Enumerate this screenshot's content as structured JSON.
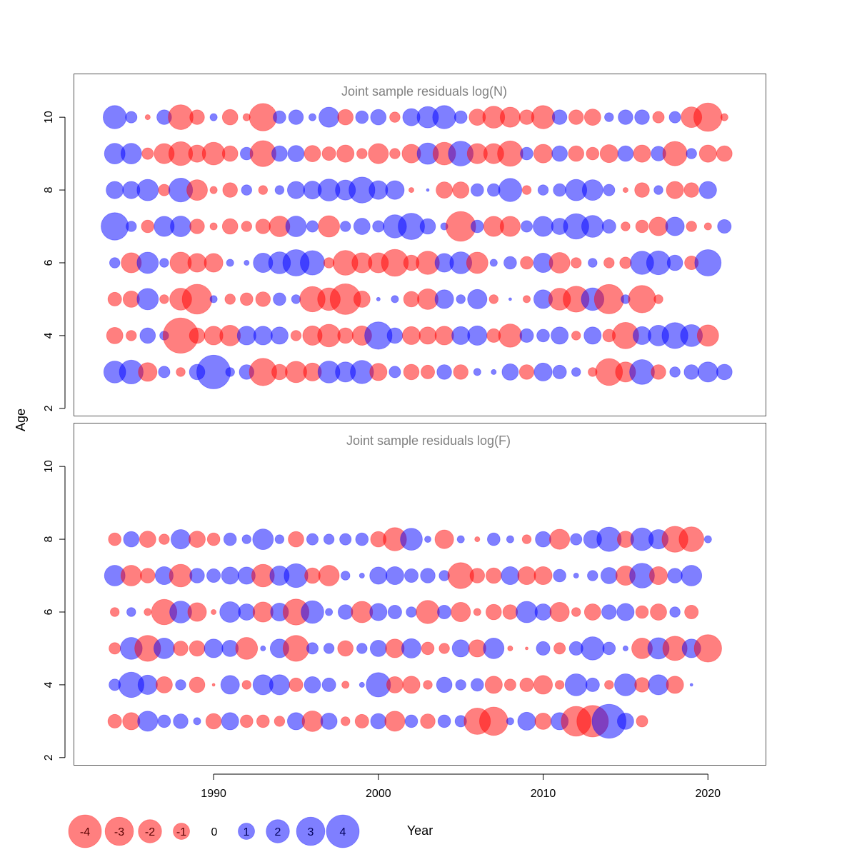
{
  "chart_data": {
    "type": "scatter",
    "xlabel": "Year",
    "ylabel": "Age",
    "xlim": [
      1981.5,
      2023.5
    ],
    "ylim": [
      1.8,
      11.2
    ],
    "x_ticks": [
      "1990",
      "2000",
      "2010",
      "2020"
    ],
    "y_ticks": [
      "2",
      "4",
      "6",
      "8",
      "10"
    ],
    "start_year": 1984,
    "colors": {
      "positive": "#0000ff",
      "negative": "#ff0000",
      "frame": "#555555"
    },
    "panels": [
      {
        "title": "Joint sample residuals log(N)",
        "ages": [
          10,
          9,
          8,
          7,
          6,
          5,
          4,
          3
        ],
        "residuals": [
          [
            2,
            0.5,
            -0.1,
            0.8,
            -2.3,
            -0.8,
            0.2,
            -0.9,
            -0.2,
            -2.8,
            0.6,
            0.8,
            0.2,
            1.5,
            -0.9,
            0.6,
            0.9,
            -0.4,
            1.1,
            1.7,
            2.0,
            0.6,
            -1.0,
            -1.8,
            -1.5,
            -0.8,
            -2.0,
            0.8,
            -0.8,
            -1.0,
            0.3,
            0.8,
            0.8,
            -0.5,
            0.5,
            -1.6,
            -3.0,
            -0.2
          ],
          [
            1.6,
            1.6,
            -0.5,
            -1.5,
            -2.1,
            -1.1,
            -1.9,
            -0.9,
            0.6,
            -2.5,
            0.9,
            1.0,
            -1.0,
            -0.7,
            -1.1,
            -0.4,
            -1.5,
            -0.4,
            -1.3,
            1.7,
            -1.9,
            2.3,
            -1.5,
            -1.5,
            -2.4,
            0.6,
            -1.3,
            0.9,
            -0.9,
            -0.6,
            -1.2,
            0.9,
            -1.1,
            0.8,
            -2.2,
            0.4,
            -1.1,
            -0.9
          ],
          [
            1.1,
            1.1,
            1.7,
            -0.5,
            2.1,
            -1.6,
            -0.2,
            -0.8,
            0.4,
            -0.3,
            0.3,
            1.1,
            1.2,
            1.8,
            1.5,
            2.5,
            1.3,
            1.3,
            -0.1,
            0.03,
            -1.0,
            -1.0,
            0.6,
            0.6,
            2.0,
            -0.3,
            0.4,
            0.6,
            1.7,
            1.6,
            0.5,
            -0.1,
            -0.8,
            0.3,
            -1.1,
            -0.8,
            1.1
          ],
          [
            2.8,
            0.4,
            -0.6,
            1.5,
            1.6,
            -0.8,
            -0.2,
            -0.9,
            -0.4,
            -0.8,
            -1.6,
            1.6,
            0.5,
            -1.7,
            0.4,
            1.0,
            0.5,
            2.0,
            2.6,
            0.9,
            0.2,
            -3.3,
            0.6,
            -1.5,
            -1.5,
            0.5,
            1.5,
            1.0,
            2.4,
            1.8,
            0.7,
            -0.3,
            -0.6,
            -1.3,
            1.3,
            -0.4,
            -0.2,
            0.7
          ],
          [
            0.4,
            -1.5,
            1.7,
            0.3,
            -1.7,
            -1.3,
            -1.3,
            0.2,
            0.1,
            1.4,
            1.8,
            2.6,
            2.2,
            -0.4,
            -2.3,
            -1.5,
            -1.5,
            -2.7,
            -0.9,
            -2.0,
            1.3,
            1.8,
            -1.7,
            0.2,
            0.6,
            -0.6,
            1.4,
            -1.6,
            -0.4,
            0.3,
            -0.4,
            -0.5,
            2.0,
            2.1,
            0.9,
            -0.7,
            2.6
          ],
          [
            -0.7,
            -1.0,
            1.7,
            -0.3,
            -1.8,
            -3.3,
            0.2,
            -0.4,
            -0.6,
            -0.8,
            0.6,
            0.3,
            -2.4,
            -1.9,
            -3.5,
            -1.0,
            0.05,
            0.2,
            -0.9,
            -1.6,
            1.3,
            0.3,
            1.4,
            -0.3,
            0.03,
            -0.2,
            1.3,
            -1.8,
            -2.5,
            1.9,
            -3.2,
            0.3,
            -2.8,
            -0.3
          ],
          [
            -1.0,
            -0.4,
            0.9,
            0.3,
            -4.6,
            -0.9,
            -1.3,
            -1.6,
            1.3,
            1.3,
            1.1,
            -0.4,
            -1.4,
            -1.9,
            -0.9,
            -1.4,
            2.8,
            0.9,
            -1.2,
            -1.1,
            -1.3,
            1.2,
            1.4,
            -0.7,
            -2.0,
            0.7,
            0.6,
            1.1,
            -0.3,
            1.1,
            -0.6,
            -2.6,
            1.2,
            1.6,
            2.5,
            1.8,
            -1.7
          ],
          [
            1.8,
            2.1,
            -1.3,
            0.5,
            -0.3,
            0.9,
            4.2,
            0.3,
            0.8,
            -2.8,
            -0.9,
            -1.7,
            -1.2,
            1.8,
            1.5,
            2.0,
            -1.1,
            0.5,
            -0.9,
            -0.7,
            0.8,
            -0.8,
            0.2,
            0.1,
            1.0,
            -0.8,
            1.2,
            0.7,
            0.3,
            -0.3,
            -2.7,
            -1.5,
            2.3,
            -0.8,
            0.4,
            0.8,
            1.5,
            0.9
          ]
        ]
      },
      {
        "title": "Joint sample residuals log(F)",
        "ages": [
          8,
          7,
          6,
          5,
          4,
          3
        ],
        "residuals": [
          [
            -0.6,
            0.9,
            -1.0,
            -0.4,
            1.4,
            -1.0,
            -0.6,
            0.6,
            0.3,
            1.6,
            0.3,
            -0.9,
            0.5,
            0.4,
            0.5,
            0.6,
            -0.9,
            -2.0,
            1.8,
            0.15,
            -1.3,
            0.2,
            -0.1,
            0.6,
            0.2,
            -0.3,
            0.9,
            -1.5,
            0.5,
            1.2,
            2.2,
            -1.0,
            1.9,
            1.4,
            -2.5,
            -2.3,
            0.2
          ],
          [
            1.6,
            -1.6,
            -0.8,
            1.2,
            -1.9,
            0.8,
            0.7,
            1.1,
            1.1,
            -1.9,
            1.4,
            2.1,
            -0.9,
            -1.6,
            0.3,
            0.1,
            1.1,
            1.2,
            0.7,
            0.8,
            0.4,
            -2.5,
            -0.8,
            -0.9,
            1.2,
            -1.2,
            -1.2,
            0.6,
            0.1,
            0.4,
            1.0,
            -1.4,
            2.3,
            -1.2,
            0.8,
            1.6
          ],
          [
            -0.3,
            0.3,
            -0.2,
            -2.4,
            1.8,
            -1.3,
            -0.1,
            1.6,
            1.0,
            -1.5,
            1.2,
            -2.5,
            1.9,
            0.2,
            0.8,
            -1.7,
            1.1,
            0.7,
            0.4,
            -2.0,
            0.7,
            -1.4,
            -0.2,
            -0.9,
            -0.8,
            1.7,
            1.0,
            -1.4,
            -0.3,
            -1.0,
            0.8,
            1.1,
            -0.6,
            -1.0,
            0.4,
            -0.7
          ],
          [
            -0.5,
            1.8,
            -2.5,
            1.6,
            -0.8,
            -0.9,
            1.3,
            1.0,
            -1.8,
            0.1,
            1.3,
            -2.5,
            0.5,
            0.4,
            -0.9,
            0.4,
            1.0,
            -1.3,
            1.4,
            -0.6,
            -0.4,
            1.1,
            -1.1,
            1.6,
            -0.1,
            -0.03,
            0.7,
            -0.5,
            0.7,
            2.0,
            0.6,
            0.1,
            -1.6,
            1.7,
            -2.2,
            1.3,
            -2.8
          ],
          [
            0.5,
            2.4,
            1.4,
            -1.0,
            0.4,
            -0.9,
            -0.03,
            1.3,
            -0.3,
            1.5,
            1.5,
            -0.7,
            1.0,
            0.7,
            -0.2,
            0.1,
            2.2,
            -1.0,
            -1.1,
            -0.3,
            0.9,
            0.4,
            0.6,
            -1.1,
            -0.5,
            -0.7,
            -1.3,
            -0.3,
            1.8,
            0.7,
            -0.3,
            1.8,
            -0.8,
            1.5,
            -1.1,
            0.03
          ],
          [
            -0.7,
            -1.1,
            1.5,
            0.6,
            0.8,
            0.2,
            -0.9,
            1.1,
            -0.6,
            -0.6,
            -0.4,
            1.1,
            -1.6,
            1.0,
            -0.3,
            -0.7,
            0.9,
            -1.5,
            0.6,
            -0.8,
            0.6,
            0.5,
            -2.6,
            -3.0,
            0.2,
            1.2,
            -1.0,
            1.1,
            -3.3,
            -3.7,
            4.3,
            1.0,
            -0.5
          ]
        ]
      }
    ],
    "legend": {
      "values": [
        -4,
        -3,
        -2,
        -1,
        0,
        1,
        2,
        3,
        4
      ],
      "labels": [
        "-4",
        "-3",
        "-2",
        "-1",
        "0",
        "1",
        "2",
        "3",
        "4"
      ]
    }
  }
}
